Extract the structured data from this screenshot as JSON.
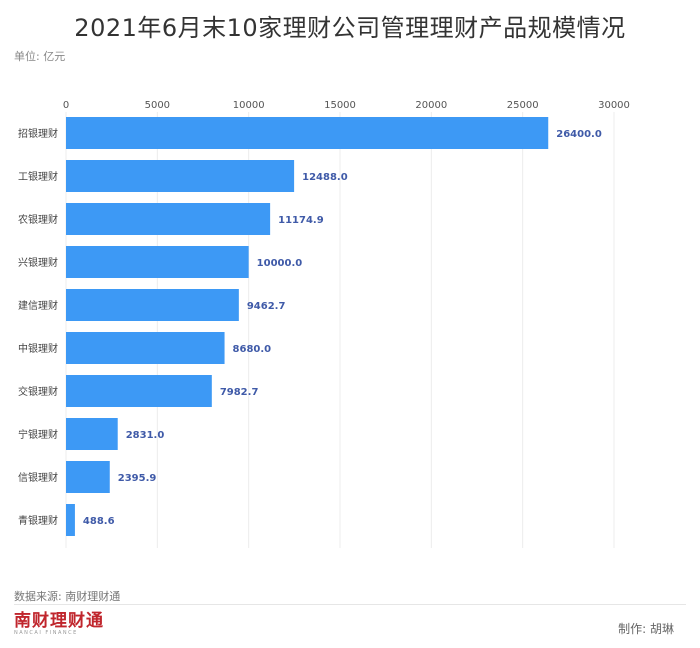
{
  "title": "2021年6月末10家理财公司管理理财产品规模情况",
  "unit": "单位: 亿元",
  "source": "数据来源: 南财理财通",
  "logo": {
    "main": "南财理财通",
    "sub": "NANCAI FINANCE"
  },
  "credit": "制作: 胡琳",
  "colors": {
    "bar": "#3d99f5",
    "value_label": "#3f5aa8",
    "grid": "#ececec"
  },
  "chart_data": {
    "type": "bar",
    "orientation": "horizontal",
    "categories": [
      "招银理财",
      "工银理财",
      "农银理财",
      "兴银理财",
      "建信理财",
      "中银理财",
      "交银理财",
      "宁银理财",
      "信银理财",
      "青银理财"
    ],
    "values": [
      26400.0,
      12488.0,
      11174.9,
      10000.0,
      9462.7,
      8680.0,
      7982.7,
      2831.0,
      2395.9,
      488.6
    ],
    "value_labels": [
      "26400.0",
      "12488.0",
      "11174.9",
      "10000.0",
      "9462.7",
      "8680.0",
      "7982.7",
      "2831.0",
      "2395.9",
      "488.6"
    ],
    "x_ticks": [
      "0",
      "5000",
      "10000",
      "15000",
      "20000",
      "25000",
      "30000"
    ],
    "xlim": [
      0,
      30000
    ],
    "axis_position": "top",
    "grid": true
  }
}
